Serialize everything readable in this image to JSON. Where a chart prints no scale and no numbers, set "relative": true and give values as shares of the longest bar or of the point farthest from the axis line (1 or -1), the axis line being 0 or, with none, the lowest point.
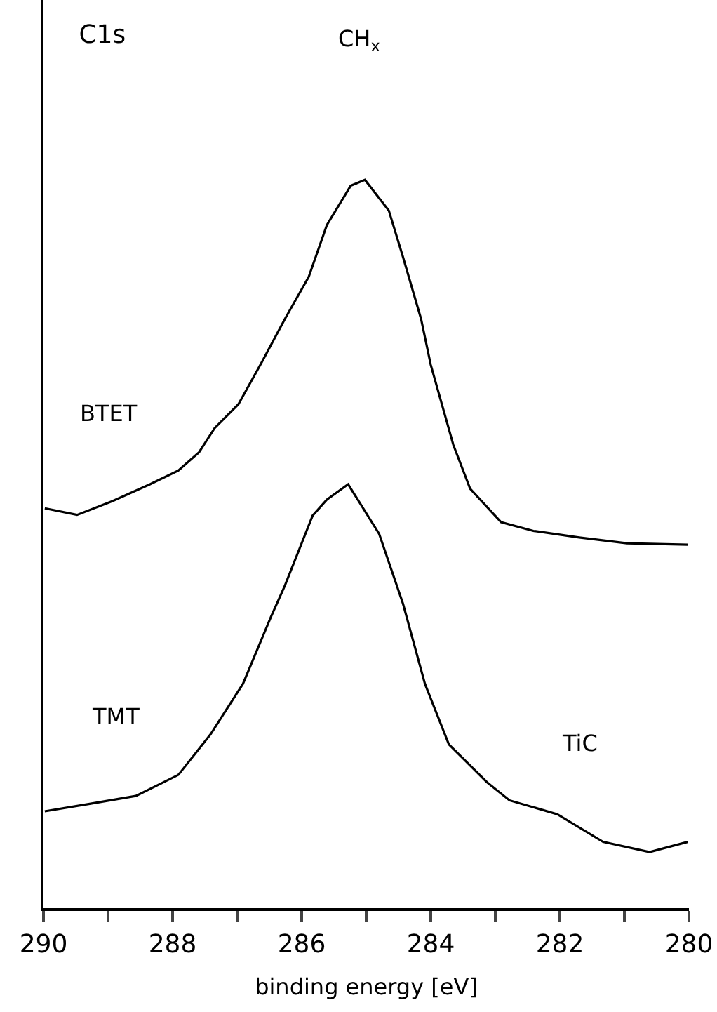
{
  "chart_data": {
    "type": "line",
    "relative": true,
    "title": "C1s",
    "xlabel": "binding energy [eV]",
    "xlim": [
      290,
      280
    ],
    "xticks": [
      290,
      {
        "value": 289,
        "label": null
      },
      288,
      {
        "value": 287,
        "label": null
      },
      286,
      {
        "value": 285,
        "label": null
      },
      284,
      {
        "value": 283,
        "label": null
      },
      282,
      {
        "value": 281,
        "label": null
      },
      280
    ],
    "series": [
      {
        "name": "BTET",
        "color": "#000000",
        "x": [
          289.98,
          289.48,
          288.93,
          288.35,
          287.91,
          287.59,
          287.35,
          286.98,
          286.61,
          286.26,
          285.89,
          285.61,
          285.24,
          285.02,
          284.65,
          284.43,
          284.15,
          284.0,
          283.65,
          283.39,
          282.91,
          282.41,
          281.7,
          280.96,
          280.02
        ],
        "values": [
          0.549,
          0.54,
          0.559,
          0.582,
          0.601,
          0.626,
          0.659,
          0.692,
          0.751,
          0.809,
          0.867,
          0.938,
          0.992,
          1.0,
          0.958,
          0.894,
          0.809,
          0.746,
          0.636,
          0.576,
          0.53,
          0.518,
          0.509,
          0.501,
          0.499
        ]
      },
      {
        "name": "TMT",
        "color": "#000000",
        "x": [
          289.98,
          289.3,
          288.57,
          287.91,
          287.41,
          286.91,
          286.48,
          286.26,
          285.83,
          285.61,
          285.28,
          284.8,
          284.43,
          284.09,
          283.72,
          283.13,
          282.78,
          282.04,
          281.33,
          280.61,
          280.02
        ],
        "values": [
          0.133,
          0.143,
          0.154,
          0.183,
          0.239,
          0.308,
          0.399,
          0.443,
          0.539,
          0.561,
          0.582,
          0.514,
          0.418,
          0.308,
          0.225,
          0.173,
          0.148,
          0.129,
          0.091,
          0.077,
          0.091
        ]
      }
    ],
    "annotations": [
      "CH$_{x}$",
      "TiC"
    ],
    "legend": false,
    "marker": "none",
    "line_style": "solid"
  }
}
